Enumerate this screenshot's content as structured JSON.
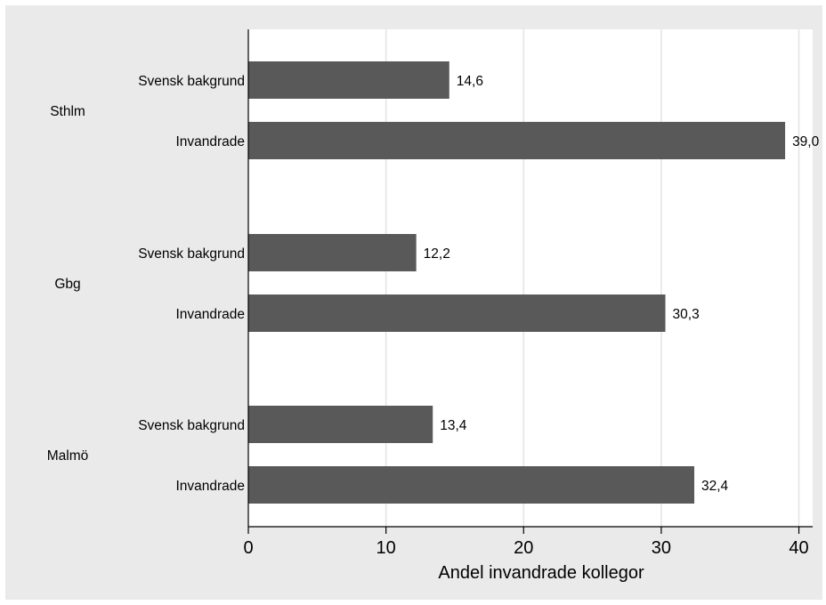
{
  "chart_data": {
    "type": "bar",
    "orientation": "horizontal",
    "groups": [
      {
        "name": "Sthlm",
        "bars": [
          {
            "category": "Svensk bakgrund",
            "value": 14.6,
            "label": "14,6"
          },
          {
            "category": "Invandrade",
            "value": 39.0,
            "label": "39,0"
          }
        ]
      },
      {
        "name": "Gbg",
        "bars": [
          {
            "category": "Svensk bakgrund",
            "value": 12.2,
            "label": "12,2"
          },
          {
            "category": "Invandrade",
            "value": 30.3,
            "label": "30,3"
          }
        ]
      },
      {
        "name": "Malmö",
        "bars": [
          {
            "category": "Svensk bakgrund",
            "value": 13.4,
            "label": "13,4"
          },
          {
            "category": "Invandrade",
            "value": 32.4,
            "label": "32,4"
          }
        ]
      }
    ],
    "xlabel": "Andel invandrade kollegor",
    "xlim": [
      0,
      41
    ],
    "xticks": [
      0,
      10,
      20,
      30,
      40
    ],
    "grid": true,
    "colors": {
      "bar": "#595959",
      "plot_bg": "#ffffff",
      "frame_bg": "#eaeaea",
      "grid": "#e3e3e3"
    }
  }
}
